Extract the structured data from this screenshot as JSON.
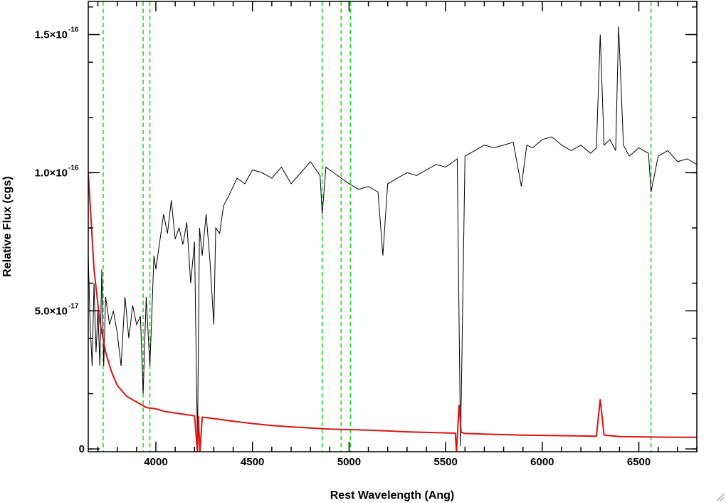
{
  "chart_data": {
    "type": "line",
    "xlabel": "Rest Wavelength (Ang)",
    "ylabel": "Relative Flux (cgs)",
    "xlim": [
      3650,
      6800
    ],
    "ylim": [
      -1e-18,
      1.62e-16
    ],
    "x_ticks": [
      {
        "value": 4000,
        "label": "4000"
      },
      {
        "value": 4500,
        "label": "4500"
      },
      {
        "value": 5000,
        "label": "5000"
      },
      {
        "value": 5500,
        "label": "5500"
      },
      {
        "value": 6000,
        "label": "6000"
      },
      {
        "value": 6500,
        "label": "6500"
      }
    ],
    "y_ticks": [
      {
        "value": 0,
        "mantissa": "0",
        "exponent": ""
      },
      {
        "value": 5e-17,
        "mantissa": "5.0×10",
        "exponent": "-17"
      },
      {
        "value": 1e-16,
        "mantissa": "1.0×10",
        "exponent": "-16"
      },
      {
        "value": 1.5e-16,
        "mantissa": "1.5×10",
        "exponent": "-16"
      }
    ],
    "line_markers_x": [
      3727,
      3934,
      3969,
      4861,
      4959,
      5007,
      6563
    ],
    "series": [
      {
        "color": "#000000",
        "x": [
          3650,
          3660,
          3670,
          3680,
          3690,
          3700,
          3710,
          3720,
          3730,
          3740,
          3760,
          3780,
          3800,
          3820,
          3840,
          3860,
          3880,
          3900,
          3920,
          3934,
          3950,
          3969,
          3990,
          4000,
          4020,
          4040,
          4060,
          4080,
          4100,
          4120,
          4140,
          4160,
          4180,
          4200,
          4215,
          4226,
          4240,
          4260,
          4280,
          4300,
          4310,
          4330,
          4350,
          4380,
          4420,
          4460,
          4500,
          4550,
          4600,
          4650,
          4700,
          4750,
          4800,
          4850,
          4861,
          4880,
          4920,
          4960,
          5000,
          5050,
          5100,
          5150,
          5175,
          5200,
          5250,
          5300,
          5350,
          5400,
          5450,
          5500,
          5540,
          5560,
          5577,
          5600,
          5650,
          5700,
          5750,
          5800,
          5850,
          5892,
          5920,
          5950,
          6000,
          6050,
          6100,
          6150,
          6200,
          6250,
          6280,
          6300,
          6320,
          6350,
          6380,
          6395,
          6420,
          6450,
          6500,
          6550,
          6563,
          6600,
          6650,
          6700,
          6750,
          6800
        ],
        "y": [
          7e-17,
          4.5e-17,
          3e-17,
          6e-17,
          3.5e-17,
          5e-17,
          3e-17,
          6.5e-17,
          3e-17,
          5.5e-17,
          4.5e-17,
          5e-17,
          4.2e-17,
          3e-17,
          5.5e-17,
          4e-17,
          5.2e-17,
          4.5e-17,
          4.8e-17,
          2e-17,
          5.5e-17,
          3e-17,
          7e-17,
          6.5e-17,
          7.5e-17,
          8.5e-17,
          7.8e-17,
          9e-17,
          7.6e-17,
          8e-17,
          7.4e-17,
          8.2e-17,
          6e-17,
          7.5e-17,
          2e-18,
          8e-17,
          7e-17,
          8.5e-17,
          6.8e-17,
          4.5e-17,
          8e-17,
          7.8e-17,
          8.8e-17,
          9.2e-17,
          9.8e-17,
          9.6e-17,
          1.01e-16,
          1e-16,
          9.8e-17,
          1.02e-16,
          9.6e-17,
          1e-16,
          1.04e-16,
          9.9e-17,
          8.5e-17,
          1.02e-16,
          1e-16,
          9.8e-17,
          9.6e-17,
          9.4e-17,
          9.5e-17,
          9.3e-17,
          7e-17,
          9.6e-17,
          9.8e-17,
          1e-16,
          9.9e-17,
          1.01e-16,
          1.03e-16,
          1.02e-16,
          1.04e-16,
          1.05e-16,
          1e-18,
          1.06e-16,
          1.08e-16,
          1.1e-16,
          1.09e-16,
          1.1e-16,
          1.11e-16,
          9.5e-17,
          1.1e-16,
          1.09e-16,
          1.12e-16,
          1.13e-16,
          1.1e-16,
          1.08e-16,
          1.1e-16,
          1.07e-16,
          1.09e-16,
          1.5e-16,
          1.1e-16,
          1.12e-16,
          1.08e-16,
          1.53e-16,
          1.1e-16,
          1.06e-16,
          1.09e-16,
          1.07e-16,
          9.3e-17,
          1.06e-16,
          1.08e-16,
          1.04e-16,
          1.05e-16,
          1.03e-16
        ]
      },
      {
        "color": "#dd1111",
        "x": [
          3650,
          3680,
          3710,
          3740,
          3770,
          3800,
          3850,
          3900,
          3950,
          4000,
          4050,
          4100,
          4150,
          4200,
          4215,
          4220,
          4228,
          4240,
          4300,
          4400,
          4500,
          4600,
          4700,
          4800,
          4900,
          5000,
          5100,
          5200,
          5300,
          5400,
          5500,
          5550,
          5556,
          5570,
          5580,
          5600,
          5650,
          5700,
          5800,
          5900,
          6000,
          6100,
          6200,
          6280,
          6300,
          6320,
          6400,
          6500,
          6600,
          6700,
          6800
        ],
        "y": [
          1e-16,
          6.5e-17,
          4.6e-17,
          3.5e-17,
          2.8e-17,
          2.3e-17,
          1.9e-17,
          1.7e-17,
          1.5e-17,
          1.45e-17,
          1.35e-17,
          1.3e-17,
          1.25e-17,
          1.2e-17,
          -1e-18,
          1.2e-17,
          -1e-18,
          1.15e-17,
          1.1e-17,
          1e-17,
          9.2e-18,
          8.5e-18,
          8e-18,
          7.6e-18,
          7.2e-18,
          7e-18,
          6.8e-18,
          6.5e-18,
          6.2e-18,
          6e-18,
          5.8e-18,
          5.7e-18,
          -1e-18,
          1.6e-17,
          6e-18,
          5.6e-18,
          5.5e-18,
          5.4e-18,
          5.2e-18,
          5e-18,
          4.9e-18,
          4.8e-18,
          4.7e-18,
          4.6e-18,
          1.8e-17,
          5e-18,
          4.5e-18,
          4.4e-18,
          4.3e-18,
          4.2e-18,
          4.2e-18
        ]
      }
    ]
  }
}
